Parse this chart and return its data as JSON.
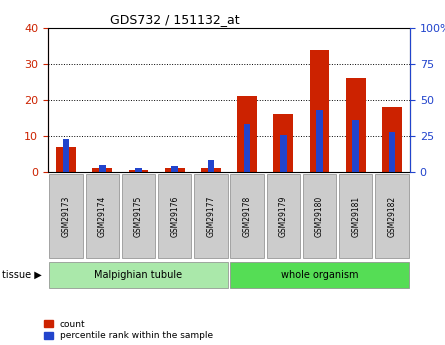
{
  "title": "GDS732 / 151132_at",
  "categories": [
    "GSM29173",
    "GSM29174",
    "GSM29175",
    "GSM29176",
    "GSM29177",
    "GSM29178",
    "GSM29179",
    "GSM29180",
    "GSM29181",
    "GSM29182"
  ],
  "count": [
    7,
    1,
    0.5,
    1,
    1,
    21,
    16,
    34,
    26,
    18
  ],
  "percentile": [
    23,
    5,
    3,
    4,
    8,
    33,
    26,
    43,
    36,
    28
  ],
  "groups": [
    {
      "label": "Malpighian tubule",
      "start": 0,
      "end": 5,
      "color": "#aae8aa"
    },
    {
      "label": "whole organism",
      "start": 5,
      "end": 10,
      "color": "#55dd55"
    }
  ],
  "bar_color_red": "#cc2200",
  "bar_color_blue": "#2244cc",
  "left_ylim": [
    0,
    40
  ],
  "right_ylim": [
    0,
    100
  ],
  "left_yticks": [
    0,
    10,
    20,
    30,
    40
  ],
  "right_yticks": [
    0,
    25,
    50,
    75,
    100
  ],
  "right_yticklabels": [
    "0",
    "25",
    "50",
    "75",
    "100%"
  ],
  "legend_count": "count",
  "legend_percentile": "percentile rank within the sample",
  "tissue_label": "tissue"
}
